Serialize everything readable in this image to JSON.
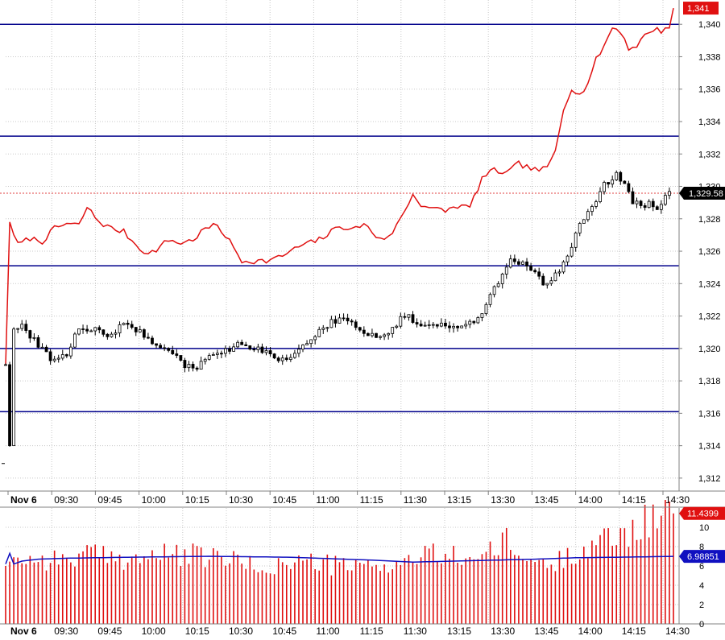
{
  "chart_data": [
    {
      "type": "candlestick",
      "panel": "price",
      "x_axis": {
        "labels": [
          "Nov 6",
          "09:30",
          "09:45",
          "10:00",
          "10:15",
          "10:30",
          "10:45",
          "11:00",
          "11:15",
          "11:30",
          "13:15",
          "13:30",
          "13:45",
          "14:00",
          "14:15",
          "14:30"
        ]
      },
      "y_axis": {
        "ticks": [
          "1,312",
          "1,314",
          "1,316",
          "1,318",
          "1,320",
          "1,322",
          "1,324",
          "1,326",
          "1,328",
          "1,330",
          "1,332",
          "1,334",
          "1,336",
          "1,338",
          "1,340"
        ],
        "range": [
          1311.2,
          1341.5
        ]
      },
      "horizontal_levels": [
        1340,
        1333.1,
        1325.1,
        1320,
        1316.1
      ],
      "last_price": {
        "value": 1329.58,
        "label": "1,329.58"
      },
      "overlay_label": {
        "value": 1341,
        "label": "1,341"
      },
      "close_path": [
        [
          0,
          1319
        ],
        [
          1,
          1314
        ],
        [
          2,
          1321.2
        ],
        [
          4,
          1321.3
        ],
        [
          6,
          1320.8
        ],
        [
          9,
          1319.9
        ],
        [
          12,
          1319.2
        ],
        [
          15,
          1319.7
        ],
        [
          18,
          1321.3
        ],
        [
          22,
          1321.1
        ],
        [
          26,
          1320.8
        ],
        [
          29,
          1321.6
        ],
        [
          32,
          1321.2
        ],
        [
          35,
          1320.5
        ],
        [
          38,
          1320.1
        ],
        [
          41,
          1319.7
        ],
        [
          44,
          1318.8
        ],
        [
          47,
          1318.9
        ],
        [
          50,
          1319.5
        ],
        [
          53,
          1319.6
        ],
        [
          56,
          1320.2
        ],
        [
          59,
          1320.2
        ],
        [
          62,
          1319.9
        ],
        [
          65,
          1319.6
        ],
        [
          68,
          1319.3
        ],
        [
          71,
          1319.6
        ],
        [
          74,
          1320.3
        ],
        [
          77,
          1321.1
        ],
        [
          80,
          1321.6
        ],
        [
          83,
          1321.8
        ],
        [
          86,
          1321.4
        ],
        [
          89,
          1320.9
        ],
        [
          92,
          1320.6
        ],
        [
          95,
          1321.2
        ],
        [
          98,
          1322.1
        ],
        [
          101,
          1321.6
        ],
        [
          104,
          1321.5
        ],
        [
          107,
          1321.5
        ],
        [
          110,
          1321.3
        ],
        [
          113,
          1321.4
        ],
        [
          116,
          1321.9
        ],
        [
          119,
          1323.2
        ],
        [
          122,
          1324.6
        ],
        [
          124,
          1325.5
        ],
        [
          126,
          1325.3
        ],
        [
          128,
          1325.0
        ],
        [
          130,
          1324.6
        ],
        [
          132,
          1324.0
        ],
        [
          134,
          1324.3
        ],
        [
          136,
          1324.9
        ],
        [
          138,
          1325.5
        ],
        [
          140,
          1327.2
        ],
        [
          142,
          1328.0
        ],
        [
          144,
          1328.6
        ],
        [
          146,
          1329.8
        ],
        [
          148,
          1330.3
        ],
        [
          150,
          1330.8
        ],
        [
          152,
          1330.2
        ],
        [
          154,
          1329.1
        ],
        [
          156,
          1328.7
        ],
        [
          158,
          1329.0
        ],
        [
          160,
          1328.4
        ],
        [
          162,
          1329.4
        ],
        [
          163,
          1329.58
        ]
      ],
      "overlay_series": [
        [
          0,
          1319
        ],
        [
          1,
          1327.8
        ],
        [
          3,
          1326.4
        ],
        [
          6,
          1326.8
        ],
        [
          9,
          1326.6
        ],
        [
          12,
          1327.4
        ],
        [
          15,
          1327.7
        ],
        [
          18,
          1327.6
        ],
        [
          20,
          1328.7
        ],
        [
          23,
          1327.8
        ],
        [
          26,
          1327.4
        ],
        [
          29,
          1327.2
        ],
        [
          32,
          1326.4
        ],
        [
          35,
          1325.8
        ],
        [
          37,
          1326.1
        ],
        [
          40,
          1326.7
        ],
        [
          43,
          1326.5
        ],
        [
          46,
          1326.7
        ],
        [
          49,
          1327.4
        ],
        [
          52,
          1327.6
        ],
        [
          55,
          1326.6
        ],
        [
          58,
          1325.4
        ],
        [
          61,
          1325.4
        ],
        [
          64,
          1325.4
        ],
        [
          67,
          1325.6
        ],
        [
          70,
          1326.0
        ],
        [
          73,
          1326.4
        ],
        [
          76,
          1326.6
        ],
        [
          79,
          1327.0
        ],
        [
          82,
          1327.6
        ],
        [
          85,
          1327.3
        ],
        [
          88,
          1327.7
        ],
        [
          91,
          1326.9
        ],
        [
          94,
          1326.8
        ],
        [
          97,
          1328.0
        ],
        [
          100,
          1329.5
        ],
        [
          102,
          1328.9
        ],
        [
          105,
          1328.6
        ],
        [
          108,
          1328.5
        ],
        [
          111,
          1328.8
        ],
        [
          114,
          1328.7
        ],
        [
          117,
          1330.5
        ],
        [
          120,
          1331.0
        ],
        [
          123,
          1330.8
        ],
        [
          126,
          1331.4
        ],
        [
          128,
          1331.2
        ],
        [
          130,
          1331.0
        ],
        [
          133,
          1331.1
        ],
        [
          135,
          1332.2
        ],
        [
          137,
          1334.8
        ],
        [
          139,
          1336.1
        ],
        [
          141,
          1335.6
        ],
        [
          143,
          1336.4
        ],
        [
          145,
          1337.8
        ],
        [
          147,
          1338.7
        ],
        [
          149,
          1339.8
        ],
        [
          151,
          1339.6
        ],
        [
          153,
          1338.5
        ],
        [
          155,
          1338.7
        ],
        [
          157,
          1339.3
        ],
        [
          159,
          1339.7
        ],
        [
          161,
          1339.6
        ],
        [
          163,
          1339.9
        ],
        [
          164,
          1341.0
        ]
      ]
    },
    {
      "type": "bar",
      "panel": "volume",
      "y_axis": {
        "ticks": [
          "0",
          "2",
          "4",
          "6",
          "8",
          "10"
        ],
        "range": [
          0,
          12
        ]
      },
      "last_volume": {
        "value": 11.4399,
        "label": "11.4399"
      },
      "average_line": {
        "value": 6.98851,
        "label": "6.98851"
      },
      "volume_profile": [
        [
          0,
          6.0
        ],
        [
          2,
          6.9
        ],
        [
          5,
          6.8
        ],
        [
          10,
          6.7
        ],
        [
          15,
          6.7
        ],
        [
          20,
          7.2
        ],
        [
          25,
          6.9
        ],
        [
          30,
          6.8
        ],
        [
          35,
          7.0
        ],
        [
          40,
          7.1
        ],
        [
          45,
          7.1
        ],
        [
          50,
          6.9
        ],
        [
          55,
          6.8
        ],
        [
          58,
          6.2
        ],
        [
          62,
          5.8
        ],
        [
          66,
          6.0
        ],
        [
          70,
          6.3
        ],
        [
          74,
          6.5
        ],
        [
          78,
          6.2
        ],
        [
          82,
          6.0
        ],
        [
          86,
          5.9
        ],
        [
          90,
          6.0
        ],
        [
          95,
          6.2
        ],
        [
          99,
          6.5
        ],
        [
          103,
          7.2
        ],
        [
          107,
          7.0
        ],
        [
          111,
          7.0
        ],
        [
          115,
          7.1
        ],
        [
          119,
          7.3
        ],
        [
          123,
          8.5
        ],
        [
          126,
          7.0
        ],
        [
          129,
          6.6
        ],
        [
          132,
          6.2
        ],
        [
          135,
          6.2
        ],
        [
          138,
          7.1
        ],
        [
          141,
          7.8
        ],
        [
          144,
          8.3
        ],
        [
          147,
          8.6
        ],
        [
          150,
          9.1
        ],
        [
          153,
          9.6
        ],
        [
          156,
          10.3
        ],
        [
          159,
          10.9
        ],
        [
          162,
          11.3
        ],
        [
          164,
          11.44
        ]
      ],
      "average_path": [
        [
          0,
          6.2
        ],
        [
          1,
          7.3
        ],
        [
          2,
          6.2
        ],
        [
          4,
          6.5
        ],
        [
          8,
          6.7
        ],
        [
          15,
          6.8
        ],
        [
          30,
          6.9
        ],
        [
          50,
          7.0
        ],
        [
          70,
          6.9
        ],
        [
          90,
          6.6
        ],
        [
          100,
          6.4
        ],
        [
          110,
          6.5
        ],
        [
          120,
          6.6
        ],
        [
          130,
          6.7
        ],
        [
          140,
          6.85
        ],
        [
          150,
          6.9
        ],
        [
          164,
          6.98851
        ]
      ]
    }
  ]
}
